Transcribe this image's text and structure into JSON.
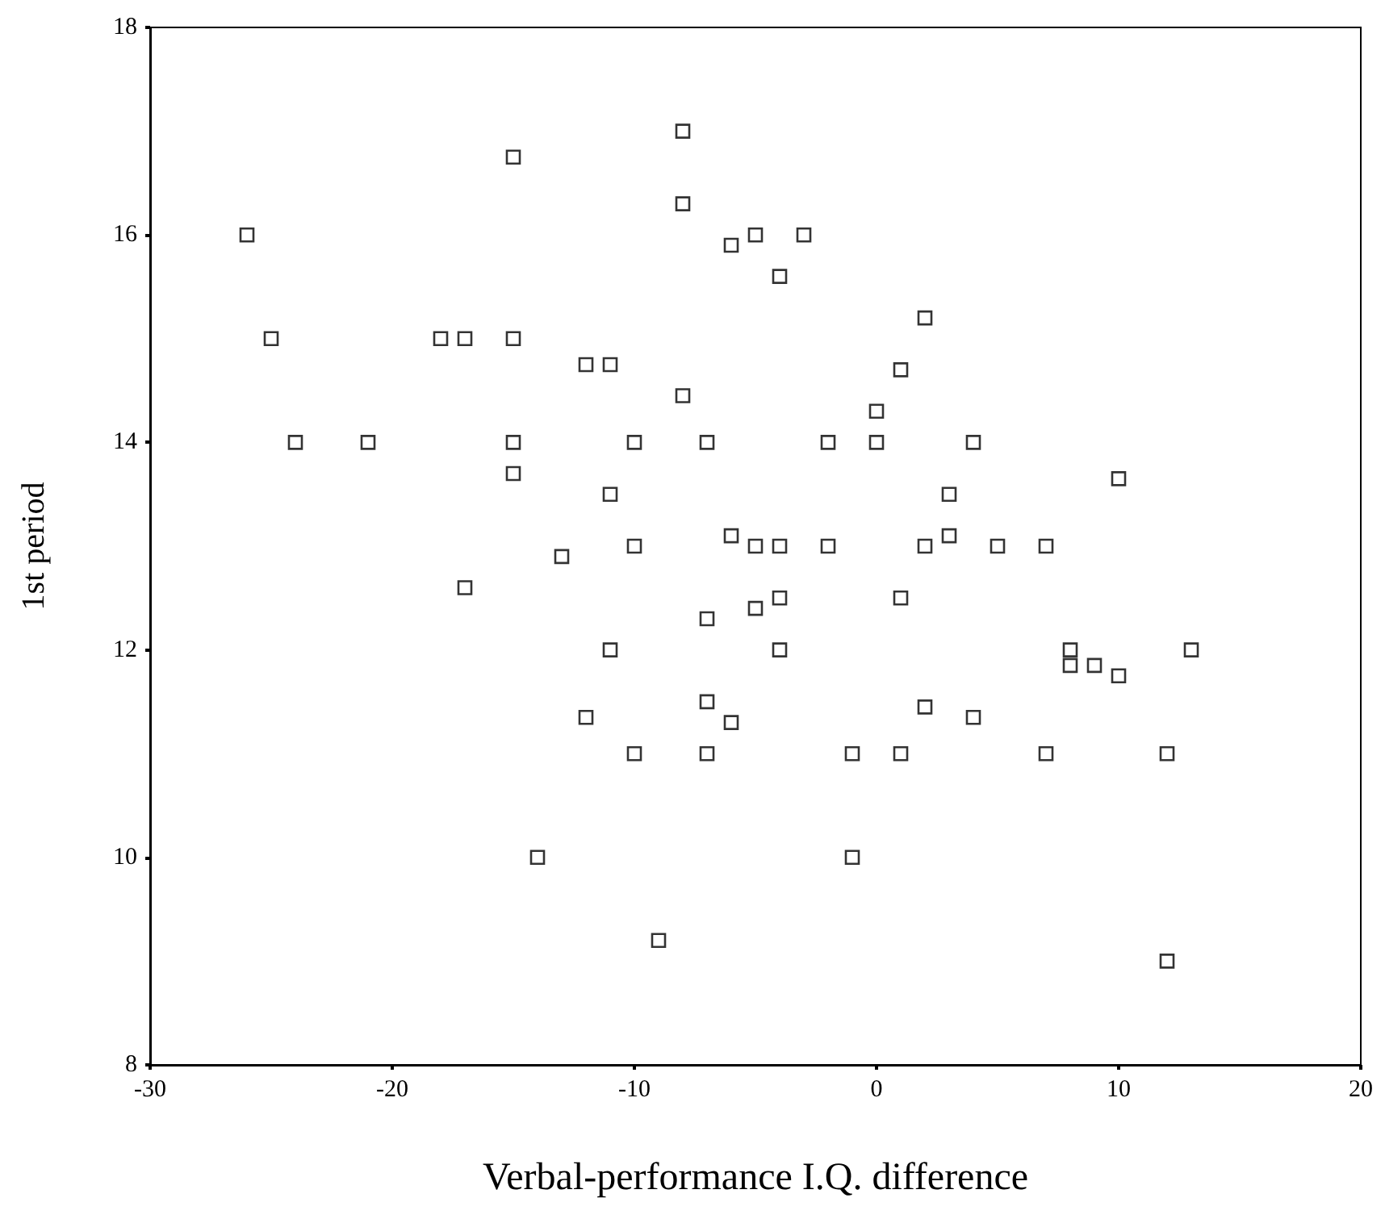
{
  "chart_data": {
    "type": "scatter",
    "xlabel": "Verbal-performance I.Q. difference",
    "ylabel": "1st period",
    "xlim": [
      -30,
      20
    ],
    "xticks": [
      -30,
      -20,
      -10,
      0,
      10,
      20
    ],
    "ylim": [
      8,
      18
    ],
    "yticks": [
      8,
      10,
      12,
      14,
      16,
      18
    ],
    "grid": false,
    "marker": "square",
    "series": [
      {
        "color": "#000000",
        "x": [
          -26,
          -25,
          -24,
          -21,
          -18,
          -17,
          -15,
          -15,
          -15,
          -15,
          -17,
          -12,
          -11,
          -11,
          -13,
          -10,
          -10,
          -11,
          -12,
          -10,
          -14,
          -9,
          -8,
          -8,
          -8,
          -7,
          -7,
          -7,
          -7,
          -6,
          -6,
          -5,
          -3,
          -4,
          -6,
          -5,
          -4,
          -5,
          -4,
          -4,
          -2,
          -2,
          -1,
          -1,
          0,
          0,
          1,
          2,
          1,
          1,
          2,
          2,
          3,
          3,
          4,
          4,
          5,
          7,
          7,
          8,
          8,
          9,
          10,
          10,
          12,
          12,
          13
        ],
        "values": [
          16,
          15,
          14,
          14,
          15,
          15,
          15,
          16.75,
          14,
          13.7,
          12.6,
          14.75,
          14.75,
          13.5,
          12.9,
          14,
          13,
          12,
          11.35,
          11,
          10,
          9.2,
          17,
          16.3,
          14.45,
          14,
          12.3,
          11.5,
          11,
          11.3,
          15.9,
          16,
          16,
          15.6,
          13.1,
          13,
          13,
          12.4,
          12.5,
          12,
          14,
          13,
          11,
          10,
          14.3,
          14,
          14.7,
          15.2,
          12.5,
          11,
          13,
          11.45,
          13.5,
          13.1,
          14,
          11.35,
          13,
          13,
          11,
          12,
          11.85,
          11.85,
          11.75,
          13.65,
          11,
          9,
          12
        ]
      }
    ]
  }
}
